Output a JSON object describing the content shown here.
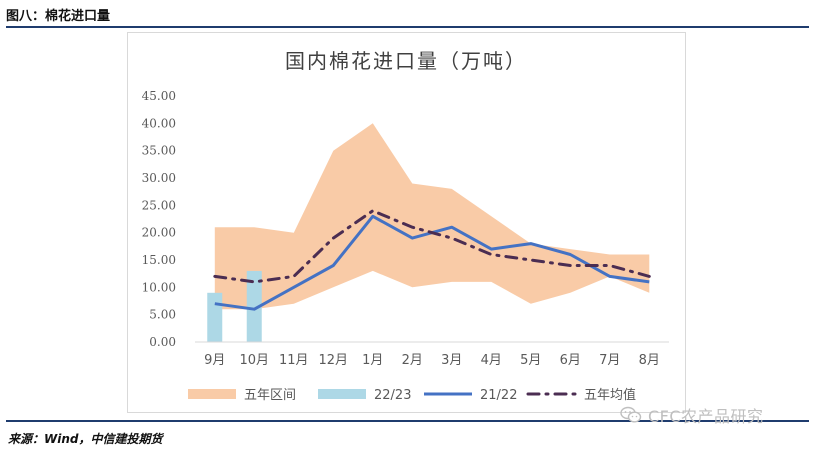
{
  "figure": {
    "label": "图八：棉花进口量",
    "source": "来源：Wind，中信建投期货"
  },
  "watermark": {
    "text": "CFC农产品研究",
    "icon": "wechat-icon"
  },
  "chart_data": {
    "type": "line",
    "title": "国内棉花进口量（万吨）",
    "categories": [
      "9月",
      "10月",
      "11月",
      "12月",
      "1月",
      "2月",
      "3月",
      "4月",
      "5月",
      "6月",
      "7月",
      "8月"
    ],
    "ylim": [
      0,
      45
    ],
    "yticks": [
      "0.00",
      "5.00",
      "10.00",
      "15.00",
      "20.00",
      "25.00",
      "30.00",
      "35.00",
      "40.00",
      "45.00"
    ],
    "grid": false,
    "legend_position": "bottom",
    "series": [
      {
        "name": "五年区间",
        "type": "range-area",
        "color": "#f9cba7",
        "lower": [
          6,
          6,
          7,
          10,
          13,
          10,
          11,
          11,
          7,
          9,
          12,
          9
        ],
        "upper": [
          21,
          21,
          20,
          35,
          40,
          29,
          28,
          23,
          18,
          17,
          16,
          16
        ]
      },
      {
        "name": "22/23",
        "type": "bar",
        "color": "#add8e6",
        "values": [
          9,
          13,
          null,
          null,
          null,
          null,
          null,
          null,
          null,
          null,
          null,
          null
        ]
      },
      {
        "name": "21/22",
        "type": "line",
        "color": "#4472c4",
        "values": [
          7,
          6,
          10,
          14,
          23,
          19,
          21,
          17,
          18,
          16,
          12,
          11
        ]
      },
      {
        "name": "五年均值",
        "type": "dash-dot-line",
        "color": "#4b2d52",
        "values": [
          12,
          11,
          12,
          19,
          24,
          21,
          19,
          16,
          15,
          14,
          14,
          12
        ]
      }
    ]
  }
}
